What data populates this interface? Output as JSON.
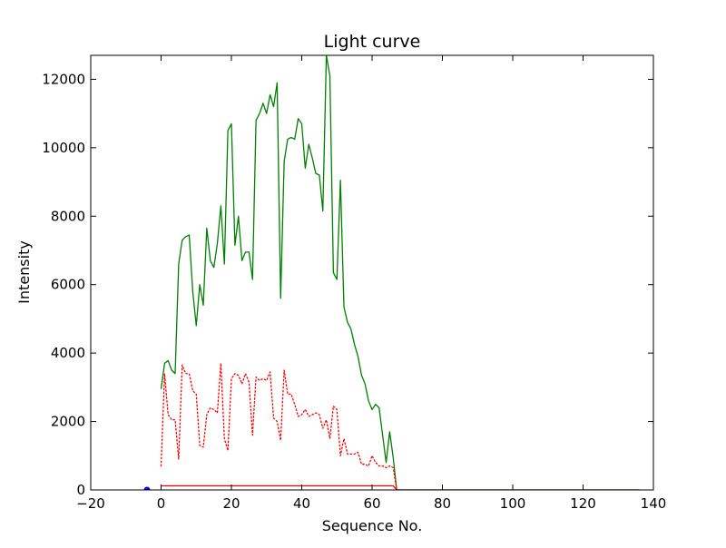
{
  "chart_data": {
    "type": "line",
    "title": "Light curve",
    "xlabel": "Sequence No.",
    "ylabel": "Intensity",
    "xlim": [
      -20,
      140
    ],
    "ylim": [
      0,
      12700
    ],
    "xticks": [
      -20,
      0,
      20,
      40,
      60,
      80,
      100,
      120,
      140
    ],
    "yticks": [
      0,
      2000,
      4000,
      6000,
      8000,
      10000,
      12000
    ],
    "grid": false,
    "legend": "none",
    "series": [
      {
        "color": "#008000",
        "style": "solid",
        "x": [
          0,
          1,
          2,
          3,
          4,
          5,
          6,
          7,
          8,
          9,
          10,
          11,
          12,
          13,
          14,
          15,
          16,
          17,
          18,
          19,
          20,
          21,
          22,
          23,
          24,
          25,
          26,
          27,
          28,
          29,
          30,
          31,
          32,
          33,
          34,
          35,
          36,
          37,
          38,
          39,
          40,
          41,
          42,
          43,
          44,
          45,
          46,
          47,
          48,
          49,
          50,
          51,
          52,
          53,
          54,
          55,
          56,
          57,
          58,
          59,
          60,
          61,
          62,
          63,
          64,
          65,
          66,
          67,
          68,
          80,
          100,
          120,
          136
        ],
        "y": [
          2950,
          3700,
          3780,
          3500,
          3400,
          6600,
          7300,
          7400,
          7450,
          5800,
          4800,
          6000,
          5400,
          7650,
          6700,
          6500,
          7200,
          8300,
          6600,
          10500,
          10700,
          7150,
          8000,
          6700,
          6950,
          6950,
          6150,
          10800,
          11000,
          11300,
          11000,
          11550,
          11200,
          11900,
          5600,
          9600,
          10250,
          10300,
          10250,
          10850,
          10700,
          9400,
          10100,
          9700,
          9250,
          9200,
          8150,
          12700,
          12100,
          6350,
          6150,
          9050,
          5350,
          4900,
          4700,
          4250,
          3900,
          3350,
          3100,
          2600,
          2350,
          2500,
          2400,
          1600,
          800,
          1700,
          950,
          0,
          0,
          0,
          0,
          0,
          0
        ]
      },
      {
        "color": "#ff0000",
        "style": "dotted",
        "x": [
          0,
          1,
          2,
          3,
          4,
          5,
          6,
          7,
          8,
          9,
          10,
          11,
          12,
          13,
          14,
          15,
          16,
          17,
          18,
          19,
          20,
          21,
          22,
          23,
          24,
          25,
          26,
          27,
          28,
          29,
          30,
          31,
          32,
          33,
          34,
          35,
          36,
          37,
          38,
          39,
          40,
          41,
          42,
          43,
          44,
          45,
          46,
          47,
          48,
          49,
          50,
          51,
          52,
          53,
          54,
          55,
          56,
          57,
          58,
          59,
          60,
          61,
          62,
          63,
          64,
          65,
          66,
          67,
          68
        ],
        "y": [
          700,
          3400,
          2200,
          2050,
          2050,
          900,
          3650,
          3400,
          3400,
          2900,
          2800,
          1300,
          1250,
          2200,
          2400,
          2350,
          2250,
          3700,
          1500,
          1150,
          3250,
          3400,
          3350,
          3100,
          3400,
          3150,
          1600,
          3300,
          3200,
          3250,
          3200,
          3450,
          2100,
          2000,
          1450,
          3500,
          2800,
          2800,
          2500,
          2150,
          2200,
          2350,
          2150,
          2200,
          2250,
          2200,
          1800,
          2050,
          1500,
          2450,
          2350,
          1000,
          1500,
          1050,
          1050,
          1050,
          1100,
          750,
          750,
          700,
          1000,
          800,
          700,
          700,
          650,
          700,
          650,
          0,
          0
        ]
      },
      {
        "color": "#ff0000",
        "style": "solid",
        "x": [
          0,
          1,
          10,
          20,
          30,
          40,
          50,
          60,
          66,
          67,
          68,
          80,
          100,
          120,
          136
        ],
        "y": [
          120,
          120,
          120,
          120,
          120,
          120,
          120,
          120,
          120,
          0,
          0,
          0,
          0,
          0,
          0
        ]
      },
      {
        "color": "#0000ff",
        "style": "marker",
        "x": [
          -4
        ],
        "y": [
          0
        ]
      }
    ]
  }
}
